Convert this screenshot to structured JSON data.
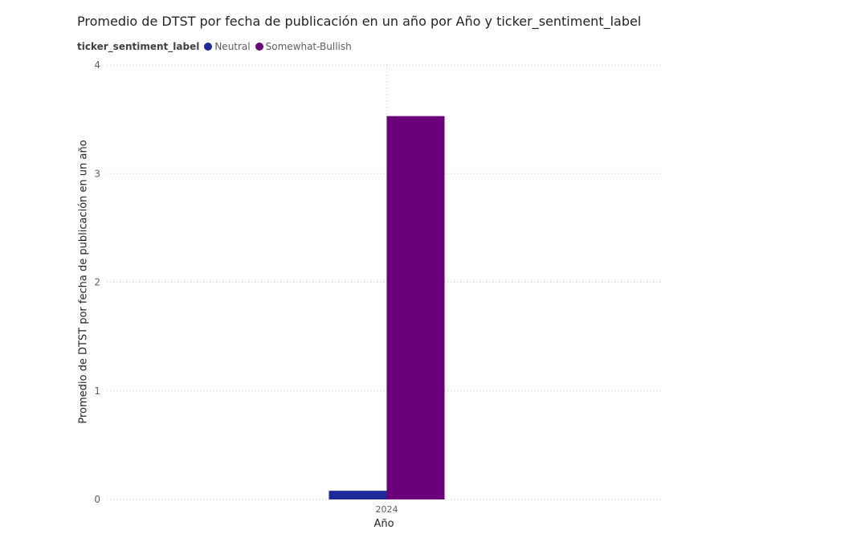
{
  "chart_data": {
    "type": "bar",
    "title": "Promedio de DTST por fecha de publicación en un año por Año y ticker_sentiment_label",
    "xlabel": "Año",
    "ylabel": "Promedio de DTST por fecha de publicación en un año",
    "categories": [
      "2024"
    ],
    "series": [
      {
        "name": "Neutral",
        "values": [
          0.08
        ],
        "color": "#1f2a9a"
      },
      {
        "name": "Somewhat-Bullish",
        "values": [
          3.53
        ],
        "color": "#6b007b"
      }
    ],
    "ylim": [
      0,
      4
    ],
    "yticks": [
      "0",
      "1",
      "2",
      "3",
      "4"
    ],
    "grid": true,
    "legend_position": "top-left",
    "legend_title": "ticker_sentiment_label"
  }
}
